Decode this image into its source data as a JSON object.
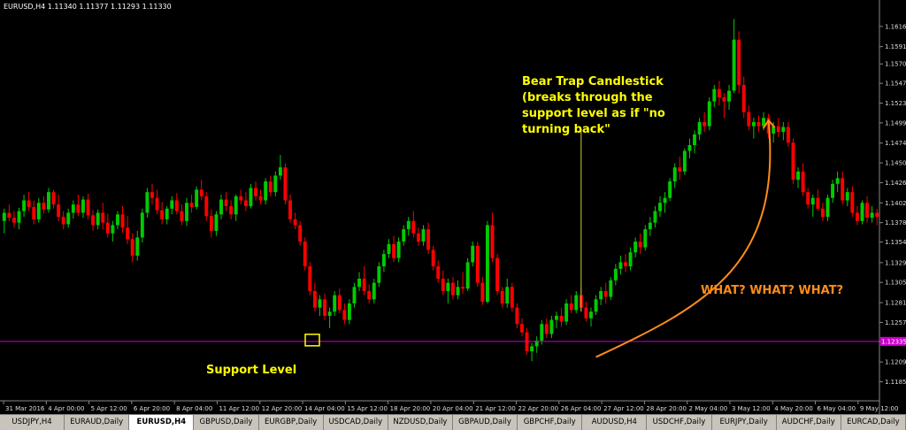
{
  "header": {
    "text": "EURUSD,H4  1.11340 1.11377 1.11293 1.11330"
  },
  "colors": {
    "bull": "#00cc00",
    "bear": "#ff0000",
    "support": "#cc00cc",
    "annotation_yellow": "#ffff00",
    "annotation_orange": "#ff8c1a"
  },
  "chart_data": {
    "type": "candlestick",
    "symbol": "EURUSD",
    "timeframe": "H4",
    "ylim": [
      1.1163,
      1.1633
    ],
    "y_ticks": [
      "1.16160",
      "1.15915",
      "1.15705",
      "1.15470",
      "1.15230",
      "1.14990",
      "1.14745",
      "1.14505",
      "1.14265",
      "1.14020",
      "1.13780",
      "1.13545",
      "1.13295",
      "1.13055",
      "1.12810",
      "1.12570",
      "1.12335",
      "1.12090",
      "1.11850"
    ],
    "x_ticks": [
      "31 Mar 2016",
      "4 Apr 00:00",
      "5 Apr 12:00",
      "6 Apr 20:00",
      "8 Apr 04:00",
      "11 Apr 12:00",
      "12 Apr 20:00",
      "14 Apr 04:00",
      "15 Apr 12:00",
      "18 Apr 20:00",
      "20 Apr 04:00",
      "21 Apr 12:00",
      "22 Apr 20:00",
      "26 Apr 04:00",
      "27 Apr 12:00",
      "28 Apr 20:00",
      "2 May 04:00",
      "3 May 12:00",
      "4 May 20:00",
      "6 May 04:00",
      "9 May 12:00"
    ],
    "support_level": {
      "price": 1.1234,
      "label": "1.12335"
    },
    "annotations": {
      "support": "Support Level",
      "bear_trap": [
        "Bear Trap Candlestick",
        "(breaks through the",
        "support level as if \"no",
        "turning back\""
      ],
      "what": "WHAT? WHAT? WHAT?"
    },
    "trap_candle_index": 117,
    "candles": [
      [
        1.138,
        1.1395,
        1.1365,
        1.139
      ],
      [
        1.139,
        1.14,
        1.138,
        1.1384
      ],
      [
        1.1384,
        1.1392,
        1.1372,
        1.1378
      ],
      [
        1.1378,
        1.1396,
        1.137,
        1.1392
      ],
      [
        1.1392,
        1.1412,
        1.1385,
        1.1405
      ],
      [
        1.1405,
        1.1415,
        1.1392,
        1.1397
      ],
      [
        1.1397,
        1.1405,
        1.1376,
        1.1382
      ],
      [
        1.1382,
        1.1408,
        1.1378,
        1.1402
      ],
      [
        1.1402,
        1.141,
        1.1389,
        1.1394
      ],
      [
        1.1394,
        1.142,
        1.139,
        1.1415
      ],
      [
        1.1415,
        1.1418,
        1.1395,
        1.14
      ],
      [
        1.14,
        1.1412,
        1.138,
        1.1385
      ],
      [
        1.1385,
        1.1392,
        1.137,
        1.1376
      ],
      [
        1.1376,
        1.1395,
        1.1372,
        1.139
      ],
      [
        1.139,
        1.1405,
        1.1383,
        1.14
      ],
      [
        1.14,
        1.1412,
        1.1386,
        1.139
      ],
      [
        1.139,
        1.141,
        1.1384,
        1.1406
      ],
      [
        1.1406,
        1.1413,
        1.1382,
        1.1387
      ],
      [
        1.1387,
        1.1393,
        1.1368,
        1.1375
      ],
      [
        1.1375,
        1.1394,
        1.137,
        1.139
      ],
      [
        1.139,
        1.1402,
        1.137,
        1.1378
      ],
      [
        1.1378,
        1.1389,
        1.136,
        1.1365
      ],
      [
        1.1365,
        1.138,
        1.1355,
        1.1375
      ],
      [
        1.1375,
        1.1392,
        1.137,
        1.1388
      ],
      [
        1.1388,
        1.1398,
        1.1366,
        1.1372
      ],
      [
        1.1372,
        1.1386,
        1.1352,
        1.1358
      ],
      [
        1.1358,
        1.1365,
        1.133,
        1.1338
      ],
      [
        1.1338,
        1.1368,
        1.1332,
        1.136
      ],
      [
        1.136,
        1.1395,
        1.1354,
        1.139
      ],
      [
        1.139,
        1.142,
        1.1384,
        1.1415
      ],
      [
        1.1415,
        1.1425,
        1.14,
        1.1408
      ],
      [
        1.1408,
        1.1418,
        1.1388,
        1.1393
      ],
      [
        1.1393,
        1.1403,
        1.1376,
        1.1382
      ],
      [
        1.1382,
        1.1398,
        1.1376,
        1.1395
      ],
      [
        1.1395,
        1.141,
        1.1388,
        1.1405
      ],
      [
        1.1405,
        1.1414,
        1.1388,
        1.1392
      ],
      [
        1.1392,
        1.14,
        1.1375,
        1.138
      ],
      [
        1.138,
        1.1408,
        1.1374,
        1.1402
      ],
      [
        1.1402,
        1.1412,
        1.139,
        1.1397
      ],
      [
        1.1397,
        1.1422,
        1.1394,
        1.1418
      ],
      [
        1.1418,
        1.143,
        1.1405,
        1.141
      ],
      [
        1.141,
        1.1415,
        1.138,
        1.1386
      ],
      [
        1.1386,
        1.1394,
        1.136,
        1.1368
      ],
      [
        1.1368,
        1.1392,
        1.1362,
        1.1388
      ],
      [
        1.1388,
        1.1412,
        1.1382,
        1.1406
      ],
      [
        1.1406,
        1.1415,
        1.1392,
        1.1398
      ],
      [
        1.1398,
        1.1405,
        1.1382,
        1.1388
      ],
      [
        1.1388,
        1.1412,
        1.138,
        1.141
      ],
      [
        1.141,
        1.1418,
        1.14,
        1.1405
      ],
      [
        1.1405,
        1.1415,
        1.1392,
        1.1398
      ],
      [
        1.1398,
        1.1425,
        1.1395,
        1.142
      ],
      [
        1.142,
        1.1428,
        1.1405,
        1.141
      ],
      [
        1.141,
        1.1418,
        1.14,
        1.1405
      ],
      [
        1.1405,
        1.1432,
        1.14,
        1.1428
      ],
      [
        1.1428,
        1.1435,
        1.141,
        1.1415
      ],
      [
        1.1415,
        1.144,
        1.141,
        1.1435
      ],
      [
        1.1435,
        1.146,
        1.143,
        1.1445
      ],
      [
        1.1445,
        1.145,
        1.14,
        1.1405
      ],
      [
        1.1405,
        1.1412,
        1.1378,
        1.1382
      ],
      [
        1.1382,
        1.139,
        1.137,
        1.1375
      ],
      [
        1.1375,
        1.138,
        1.135,
        1.1355
      ],
      [
        1.1355,
        1.136,
        1.132,
        1.1325
      ],
      [
        1.1325,
        1.133,
        1.129,
        1.1295
      ],
      [
        1.1295,
        1.1305,
        1.127,
        1.1275
      ],
      [
        1.1275,
        1.129,
        1.1265,
        1.1285
      ],
      [
        1.1285,
        1.1292,
        1.126,
        1.1265
      ],
      [
        1.1265,
        1.1275,
        1.125,
        1.127
      ],
      [
        1.127,
        1.1295,
        1.1265,
        1.129
      ],
      [
        1.129,
        1.1298,
        1.1268,
        1.1272
      ],
      [
        1.1272,
        1.128,
        1.1255,
        1.126
      ],
      [
        1.126,
        1.1285,
        1.1255,
        1.128
      ],
      [
        1.128,
        1.1305,
        1.1275,
        1.13
      ],
      [
        1.13,
        1.1318,
        1.1295,
        1.131
      ],
      [
        1.131,
        1.1325,
        1.129,
        1.1295
      ],
      [
        1.1295,
        1.1303,
        1.128,
        1.1285
      ],
      [
        1.1285,
        1.131,
        1.128,
        1.1305
      ],
      [
        1.1305,
        1.133,
        1.13,
        1.1325
      ],
      [
        1.1325,
        1.1345,
        1.1318,
        1.134
      ],
      [
        1.134,
        1.1358,
        1.1335,
        1.1352
      ],
      [
        1.1352,
        1.1362,
        1.133,
        1.1335
      ],
      [
        1.1335,
        1.136,
        1.133,
        1.1355
      ],
      [
        1.1355,
        1.1375,
        1.135,
        1.137
      ],
      [
        1.137,
        1.1385,
        1.1362,
        1.138
      ],
      [
        1.138,
        1.1392,
        1.136,
        1.1365
      ],
      [
        1.1365,
        1.1372,
        1.135,
        1.1355
      ],
      [
        1.1355,
        1.1375,
        1.135,
        1.137
      ],
      [
        1.137,
        1.1378,
        1.134,
        1.1345
      ],
      [
        1.1345,
        1.135,
        1.132,
        1.1325
      ],
      [
        1.1325,
        1.1332,
        1.1305,
        1.131
      ],
      [
        1.131,
        1.132,
        1.129,
        1.1295
      ],
      [
        1.1295,
        1.131,
        1.128,
        1.1305
      ],
      [
        1.1305,
        1.1312,
        1.1285,
        1.129
      ],
      [
        1.129,
        1.1308,
        1.1285,
        1.13
      ],
      [
        1.13,
        1.1318,
        1.1292,
        1.1298
      ],
      [
        1.1298,
        1.1335,
        1.1295,
        1.133
      ],
      [
        1.133,
        1.1355,
        1.1325,
        1.135
      ],
      [
        1.135,
        1.1355,
        1.13,
        1.1305
      ],
      [
        1.1305,
        1.1312,
        1.1278,
        1.1282
      ],
      [
        1.1282,
        1.138,
        1.128,
        1.1375
      ],
      [
        1.1375,
        1.139,
        1.133,
        1.1335
      ],
      [
        1.1335,
        1.134,
        1.129,
        1.1295
      ],
      [
        1.1295,
        1.13,
        1.1275,
        1.128
      ],
      [
        1.128,
        1.131,
        1.1275,
        1.13
      ],
      [
        1.13,
        1.1305,
        1.127,
        1.1275
      ],
      [
        1.1275,
        1.128,
        1.125,
        1.1255
      ],
      [
        1.1255,
        1.1262,
        1.124,
        1.1245
      ],
      [
        1.1245,
        1.125,
        1.1218,
        1.1222
      ],
      [
        1.1222,
        1.1232,
        1.121,
        1.1228
      ],
      [
        1.1228,
        1.124,
        1.122,
        1.1235
      ],
      [
        1.1235,
        1.126,
        1.123,
        1.1255
      ],
      [
        1.1255,
        1.1262,
        1.1238,
        1.1243
      ],
      [
        1.1243,
        1.1265,
        1.1238,
        1.126
      ],
      [
        1.126,
        1.127,
        1.125,
        1.1265
      ],
      [
        1.1265,
        1.1275,
        1.1252,
        1.1258
      ],
      [
        1.1258,
        1.1285,
        1.1254,
        1.128
      ],
      [
        1.128,
        1.129,
        1.1268,
        1.1272
      ],
      [
        1.1272,
        1.1295,
        1.1268,
        1.129
      ],
      [
        1.129,
        1.13,
        1.127,
        1.1275
      ],
      [
        1.1275,
        1.1282,
        1.1258,
        1.1262
      ],
      [
        1.1262,
        1.1275,
        1.1252,
        1.127
      ],
      [
        1.127,
        1.129,
        1.1266,
        1.1285
      ],
      [
        1.1285,
        1.13,
        1.1278,
        1.1295
      ],
      [
        1.1295,
        1.1305,
        1.128,
        1.1288
      ],
      [
        1.1288,
        1.1312,
        1.1284,
        1.1308
      ],
      [
        1.1308,
        1.1328,
        1.1302,
        1.1322
      ],
      [
        1.1322,
        1.1338,
        1.1315,
        1.133
      ],
      [
        1.133,
        1.134,
        1.1318,
        1.1325
      ],
      [
        1.1325,
        1.1348,
        1.132,
        1.1342
      ],
      [
        1.1342,
        1.136,
        1.1336,
        1.1355
      ],
      [
        1.1355,
        1.1365,
        1.134,
        1.1348
      ],
      [
        1.1348,
        1.1375,
        1.1344,
        1.137
      ],
      [
        1.137,
        1.1385,
        1.1362,
        1.1378
      ],
      [
        1.1378,
        1.1398,
        1.1372,
        1.1392
      ],
      [
        1.1392,
        1.141,
        1.1385,
        1.1402
      ],
      [
        1.1402,
        1.1415,
        1.139,
        1.1408
      ],
      [
        1.1408,
        1.1432,
        1.1404,
        1.1428
      ],
      [
        1.1428,
        1.145,
        1.142,
        1.1445
      ],
      [
        1.1445,
        1.1458,
        1.143,
        1.144
      ],
      [
        1.144,
        1.1468,
        1.1436,
        1.1465
      ],
      [
        1.1465,
        1.148,
        1.1456,
        1.1472
      ],
      [
        1.1472,
        1.149,
        1.1462,
        1.1485
      ],
      [
        1.1485,
        1.1505,
        1.1478,
        1.15
      ],
      [
        1.15,
        1.1512,
        1.1488,
        1.1495
      ],
      [
        1.1495,
        1.153,
        1.149,
        1.1525
      ],
      [
        1.1525,
        1.1545,
        1.1518,
        1.154
      ],
      [
        1.154,
        1.155,
        1.152,
        1.153
      ],
      [
        1.153,
        1.1535,
        1.1505,
        1.1525
      ],
      [
        1.1525,
        1.1545,
        1.1515,
        1.1538
      ],
      [
        1.1538,
        1.1625,
        1.1535,
        1.16
      ],
      [
        1.16,
        1.161,
        1.1535,
        1.1545
      ],
      [
        1.1545,
        1.1555,
        1.1505,
        1.1512
      ],
      [
        1.1512,
        1.152,
        1.149,
        1.1495
      ],
      [
        1.1495,
        1.1505,
        1.148,
        1.15
      ],
      [
        1.15,
        1.1508,
        1.1488,
        1.1495
      ],
      [
        1.1495,
        1.1512,
        1.149,
        1.1505
      ],
      [
        1.1505,
        1.151,
        1.148,
        1.1486
      ],
      [
        1.1486,
        1.15,
        1.1475,
        1.1495
      ],
      [
        1.1495,
        1.1505,
        1.1482,
        1.1488
      ],
      [
        1.1488,
        1.15,
        1.1478,
        1.1494
      ],
      [
        1.1494,
        1.15,
        1.147,
        1.1475
      ],
      [
        1.1475,
        1.148,
        1.1425,
        1.143
      ],
      [
        1.143,
        1.1445,
        1.142,
        1.144
      ],
      [
        1.144,
        1.145,
        1.141,
        1.1415
      ],
      [
        1.1415,
        1.142,
        1.1395,
        1.14
      ],
      [
        1.14,
        1.1412,
        1.1385,
        1.1408
      ],
      [
        1.1408,
        1.1418,
        1.1392,
        1.1395
      ],
      [
        1.1395,
        1.1402,
        1.138,
        1.1385
      ],
      [
        1.1385,
        1.1412,
        1.138,
        1.1408
      ],
      [
        1.1408,
        1.143,
        1.1402,
        1.1425
      ],
      [
        1.1425,
        1.144,
        1.1415,
        1.1432
      ],
      [
        1.1432,
        1.144,
        1.14,
        1.1405
      ],
      [
        1.1405,
        1.142,
        1.1398,
        1.1415
      ],
      [
        1.1415,
        1.1422,
        1.1385,
        1.139
      ],
      [
        1.139,
        1.1398,
        1.1375,
        1.138
      ],
      [
        1.138,
        1.1405,
        1.1376,
        1.1402
      ],
      [
        1.1402,
        1.141,
        1.1378,
        1.1384
      ],
      [
        1.1384,
        1.1398,
        1.1378,
        1.139
      ],
      [
        1.139,
        1.1395,
        1.1375,
        1.1385
      ]
    ]
  },
  "tabs": [
    {
      "label": "USDJPY,H4"
    },
    {
      "label": "EURAUD,Daily"
    },
    {
      "label": "EURUSD,H4",
      "active": true
    },
    {
      "label": "GBPUSD,Daily"
    },
    {
      "label": "EURGBP,Daily"
    },
    {
      "label": "USDCAD,Daily"
    },
    {
      "label": "NZDUSD,Daily"
    },
    {
      "label": "GBPAUD,Daily"
    },
    {
      "label": "GBPCHF,Daily"
    },
    {
      "label": "AUDUSD,H4"
    },
    {
      "label": "USDCHF,Daily"
    },
    {
      "label": "EURJPY,Daily"
    },
    {
      "label": "AUDCHF,Daily"
    },
    {
      "label": "EURCAD,Daily"
    }
  ]
}
